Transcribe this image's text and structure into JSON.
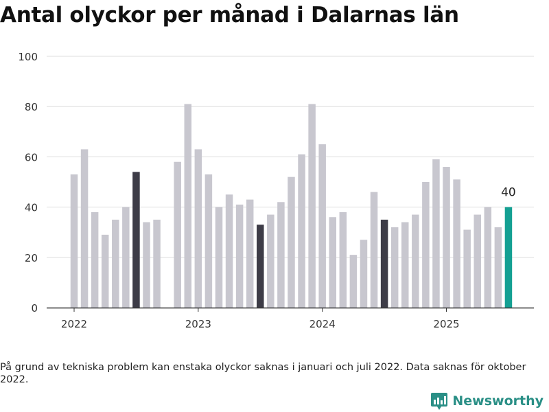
{
  "title": "Antal olyckor per månad i Dalarnas län",
  "footnote": "På grund av tekniska problem kan enstaka olyckor saknas i januari och juli 2022. Data saknas för oktober 2022.",
  "brand": "Newsworthy",
  "colors": {
    "bar": "#c8c7cf",
    "july": "#3d3c47",
    "latest": "#14a093",
    "grid": "#dddddd",
    "axis": "#333333",
    "brand": "#2a8f86"
  },
  "chart_data": {
    "type": "bar",
    "title": "Antal olyckor per månad i Dalarnas län",
    "ylim": [
      0,
      100
    ],
    "yticks": [
      0,
      20,
      40,
      60,
      80,
      100
    ],
    "xticks": [
      "2022",
      "2023",
      "2024",
      "2025"
    ],
    "grid": true,
    "categories": [
      "2022-01",
      "2022-02",
      "2022-03",
      "2022-04",
      "2022-05",
      "2022-06",
      "2022-07",
      "2022-08",
      "2022-09",
      "2022-10",
      "2022-11",
      "2022-12",
      "2023-01",
      "2023-02",
      "2023-03",
      "2023-04",
      "2023-05",
      "2023-06",
      "2023-07",
      "2023-08",
      "2023-09",
      "2023-10",
      "2023-11",
      "2023-12",
      "2024-01",
      "2024-02",
      "2024-03",
      "2024-04",
      "2024-05",
      "2024-06",
      "2024-07",
      "2024-08",
      "2024-09",
      "2024-10",
      "2024-11",
      "2024-12",
      "2025-01",
      "2025-02",
      "2025-03",
      "2025-04",
      "2025-05",
      "2025-06",
      "2025-07"
    ],
    "values": [
      53,
      63,
      38,
      29,
      35,
      40,
      54,
      34,
      35,
      null,
      58,
      81,
      63,
      53,
      40,
      45,
      41,
      43,
      33,
      37,
      42,
      52,
      61,
      81,
      65,
      36,
      38,
      21,
      27,
      46,
      35,
      32,
      34,
      37,
      50,
      59,
      56,
      51,
      31,
      37,
      40,
      32,
      40
    ],
    "highlighted": [
      "2022-07",
      "2023-07",
      "2024-07"
    ],
    "latest_label": "40"
  }
}
